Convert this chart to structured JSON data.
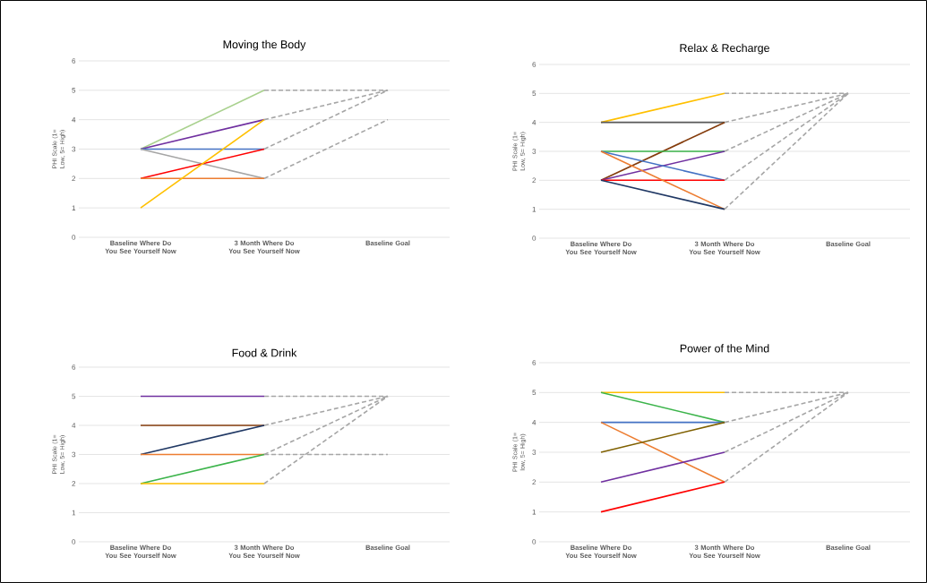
{
  "chart_data": [
    {
      "type": "line",
      "title": "Moving the Body",
      "ylabel": "PHI Scale (1= Low, 5= High)",
      "categories": [
        "Baseline Where Do You See Yourself Now",
        "3 Month Where Do You See Yourself Now",
        "Baseline Goal"
      ],
      "ylim": [
        0,
        6
      ],
      "yticks": [
        0,
        1,
        2,
        3,
        4,
        5,
        6
      ],
      "grid": "y",
      "series": [
        {
          "color": "#a9d18e",
          "values": [
            3,
            5,
            null
          ]
        },
        {
          "color": "#7030a0",
          "values": [
            3,
            4,
            null
          ]
        },
        {
          "color": "#4472c4",
          "values": [
            3,
            3,
            null
          ]
        },
        {
          "color": "#a5a5a5",
          "values": [
            3,
            2,
            null
          ]
        },
        {
          "color": "#ff0000",
          "values": [
            2,
            3,
            null
          ]
        },
        {
          "color": "#ed7d31",
          "values": [
            2,
            2,
            null
          ]
        },
        {
          "color": "#ffc000",
          "values": [
            1,
            4,
            null
          ]
        },
        {
          "color": "#a6a6a6",
          "line_style": "dashed",
          "values": [
            null,
            5,
            5
          ]
        },
        {
          "color": "#a6a6a6",
          "line_style": "dashed",
          "values": [
            null,
            4,
            5
          ]
        },
        {
          "color": "#a6a6a6",
          "line_style": "dashed",
          "values": [
            null,
            3,
            5
          ]
        },
        {
          "color": "#a6a6a6",
          "line_style": "dashed",
          "values": [
            null,
            2,
            4
          ]
        }
      ]
    },
    {
      "type": "line",
      "title": "Relax & Recharge",
      "ylabel": "PHI Scale (1= Low, 5= High)",
      "categories": [
        "Baseline Where Do You See Yourself Now",
        "3 Month Where Do You See Yourself Now",
        "Baseline Goal"
      ],
      "ylim": [
        0,
        6
      ],
      "yticks": [
        0,
        1,
        2,
        3,
        4,
        5,
        6
      ],
      "grid": "y",
      "series": [
        {
          "color": "#ffc000",
          "values": [
            4,
            5,
            null
          ]
        },
        {
          "color": "#595959",
          "values": [
            4,
            4,
            null
          ]
        },
        {
          "color": "#843c0c",
          "values": [
            2,
            4,
            null
          ]
        },
        {
          "color": "#3cb44b",
          "values": [
            3,
            3,
            null
          ]
        },
        {
          "color": "#7030a0",
          "values": [
            2,
            3,
            null
          ]
        },
        {
          "color": "#4472c4",
          "values": [
            3,
            2,
            null
          ]
        },
        {
          "color": "#ff0000",
          "values": [
            2,
            2,
            null
          ]
        },
        {
          "color": "#ed7d31",
          "values": [
            3,
            1,
            null
          ]
        },
        {
          "color": "#203864",
          "values": [
            2,
            1,
            null
          ]
        },
        {
          "color": "#a6a6a6",
          "line_style": "dashed",
          "values": [
            null,
            5,
            5
          ]
        },
        {
          "color": "#a6a6a6",
          "line_style": "dashed",
          "values": [
            null,
            4,
            5
          ]
        },
        {
          "color": "#a6a6a6",
          "line_style": "dashed",
          "values": [
            null,
            3,
            5
          ]
        },
        {
          "color": "#a6a6a6",
          "line_style": "dashed",
          "values": [
            null,
            2,
            5
          ]
        },
        {
          "color": "#a6a6a6",
          "line_style": "dashed",
          "values": [
            null,
            1,
            5
          ]
        }
      ]
    },
    {
      "type": "line",
      "title": "Food & Drink",
      "ylabel": "PHI Scale (1= Low, 5= High)",
      "categories": [
        "Baseline Where Do You See Yourself Now",
        "3 Month Where Do You See Yourself Now",
        "Baseline Goal"
      ],
      "ylim": [
        0,
        6
      ],
      "yticks": [
        0,
        1,
        2,
        3,
        4,
        5,
        6
      ],
      "grid": "y",
      "series": [
        {
          "color": "#7030a0",
          "values": [
            5,
            5,
            null
          ]
        },
        {
          "color": "#843c0c",
          "values": [
            4,
            4,
            null
          ]
        },
        {
          "color": "#203864",
          "values": [
            3,
            4,
            null
          ]
        },
        {
          "color": "#ed7d31",
          "values": [
            3,
            3,
            null
          ]
        },
        {
          "color": "#3cb44b",
          "values": [
            2,
            3,
            null
          ]
        },
        {
          "color": "#ffc000",
          "values": [
            2,
            2,
            null
          ]
        },
        {
          "color": "#a6a6a6",
          "line_style": "dashed",
          "values": [
            null,
            5,
            5
          ]
        },
        {
          "color": "#a6a6a6",
          "line_style": "dashed",
          "values": [
            null,
            4,
            5
          ]
        },
        {
          "color": "#a6a6a6",
          "line_style": "dashed",
          "values": [
            null,
            3,
            5
          ]
        },
        {
          "color": "#a6a6a6",
          "line_style": "dashed",
          "values": [
            null,
            3,
            3
          ]
        },
        {
          "color": "#a6a6a6",
          "line_style": "dashed",
          "values": [
            null,
            2,
            5
          ]
        }
      ]
    },
    {
      "type": "line",
      "title": "Power of the Mind",
      "ylabel": "PHI Scale (1= low, 5= High)",
      "categories": [
        "Baseline Where Do You See Yourself Now",
        "3 Month Where Do You See Yourself Now",
        "Baseline Goal"
      ],
      "ylim": [
        0,
        6
      ],
      "yticks": [
        0,
        1,
        2,
        3,
        4,
        5,
        6
      ],
      "grid": "y",
      "series": [
        {
          "color": "#ffc000",
          "values": [
            5,
            5,
            null
          ]
        },
        {
          "color": "#3cb44b",
          "values": [
            5,
            4,
            null
          ]
        },
        {
          "color": "#4472c4",
          "values": [
            4,
            4,
            null
          ]
        },
        {
          "color": "#ed7d31",
          "values": [
            4,
            2,
            null
          ]
        },
        {
          "color": "#7f6000",
          "values": [
            3,
            4,
            null
          ]
        },
        {
          "color": "#7030a0",
          "values": [
            2,
            3,
            null
          ]
        },
        {
          "color": "#ff0000",
          "values": [
            1,
            2,
            null
          ]
        },
        {
          "color": "#a6a6a6",
          "line_style": "dashed",
          "values": [
            null,
            5,
            5
          ]
        },
        {
          "color": "#a6a6a6",
          "line_style": "dashed",
          "values": [
            null,
            4,
            5
          ]
        },
        {
          "color": "#a6a6a6",
          "line_style": "dashed",
          "values": [
            null,
            3,
            5
          ]
        },
        {
          "color": "#a6a6a6",
          "line_style": "dashed",
          "values": [
            null,
            2,
            5
          ]
        }
      ]
    }
  ]
}
